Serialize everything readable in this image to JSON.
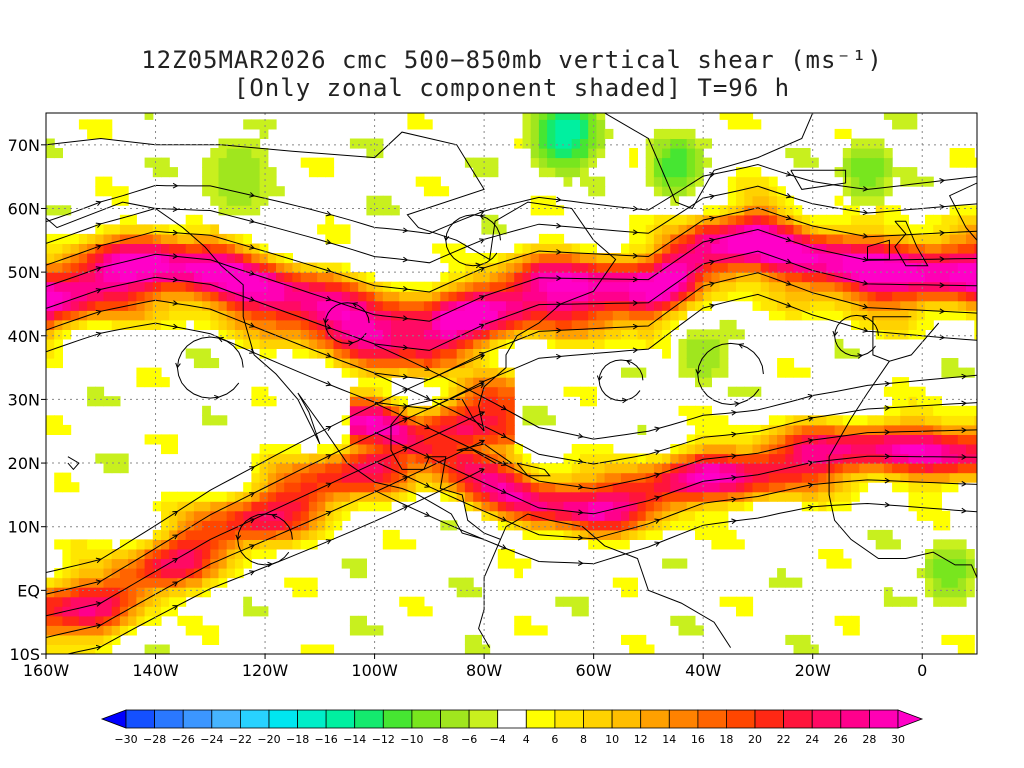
{
  "title": {
    "line1": "12Z05MAR2026 cmc 500−850mb vertical shear (ms⁻¹)",
    "line2": "[Only zonal component shaded] T=96 h"
  },
  "map": {
    "projection": "lat-lon",
    "lon_range": [
      -160,
      10
    ],
    "lat_range": [
      -10,
      75
    ],
    "lon_ticks": [
      {
        "value": -160,
        "label": "160W"
      },
      {
        "value": -140,
        "label": "140W"
      },
      {
        "value": -120,
        "label": "120W"
      },
      {
        "value": -100,
        "label": "100W"
      },
      {
        "value": -80,
        "label": "80W"
      },
      {
        "value": -60,
        "label": "60W"
      },
      {
        "value": -40,
        "label": "40W"
      },
      {
        "value": -20,
        "label": "20W"
      },
      {
        "value": 0,
        "label": "0"
      }
    ],
    "lat_ticks": [
      {
        "value": -10,
        "label": "10S"
      },
      {
        "value": 0,
        "label": "EQ"
      },
      {
        "value": 10,
        "label": "10N"
      },
      {
        "value": 20,
        "label": "20N"
      },
      {
        "value": 30,
        "label": "30N"
      },
      {
        "value": 40,
        "label": "40N"
      },
      {
        "value": 50,
        "label": "50N"
      },
      {
        "value": 60,
        "label": "60N"
      },
      {
        "value": 70,
        "label": "70N"
      }
    ],
    "gridlines": "dotted"
  },
  "colorbar": {
    "levels": [
      "-30",
      "-28",
      "-26",
      "-24",
      "-22",
      "-20",
      "-18",
      "-16",
      "-14",
      "-12",
      "-10",
      "-8",
      "-6",
      "-4",
      "4",
      "6",
      "8",
      "10",
      "12",
      "14",
      "16",
      "18",
      "20",
      "22",
      "24",
      "26",
      "28",
      "30"
    ],
    "colors": [
      "#0000ff",
      "#1450ff",
      "#2a78ff",
      "#3c96ff",
      "#46b4ff",
      "#28d2ff",
      "#00e6f0",
      "#00eec8",
      "#00f0a0",
      "#14ea6e",
      "#46e632",
      "#78e61e",
      "#a0e61e",
      "#c8f01e",
      "#ffffff",
      "#ffff00",
      "#ffe600",
      "#ffd200",
      "#ffbe00",
      "#ffa000",
      "#ff8200",
      "#ff6400",
      "#ff4600",
      "#ff2814",
      "#ff143c",
      "#ff0a64",
      "#ff008c",
      "#ff00b4",
      "#ff00c8"
    ]
  },
  "shading": {
    "comment_free": true,
    "bands": [
      {
        "lon": [
          -160,
          -150,
          -140,
          -130,
          -120,
          -110,
          -100,
          -90,
          -80,
          -70,
          -60,
          -50,
          -40,
          -30,
          -20,
          -10,
          0,
          10
        ],
        "center_lat": [
          46,
          49,
          51,
          50,
          47,
          44,
          41,
          40,
          44,
          47,
          47,
          47,
          53,
          55,
          52,
          50,
          50,
          50
        ],
        "half_width": 6,
        "peak": 30
      },
      {
        "lon": [
          -100,
          -90,
          -80,
          -70,
          -60,
          -50,
          -40,
          -30,
          -20,
          -10,
          0,
          10
        ],
        "center_lat": [
          26,
          22,
          18,
          14,
          13,
          15,
          18,
          19,
          21,
          22,
          22,
          22
        ],
        "half_width": 5,
        "peak": 26
      },
      {
        "lon": [
          -160,
          -150,
          -140,
          -130,
          -120,
          -110,
          -100,
          -90,
          -80
        ],
        "center_lat": [
          -4,
          -2,
          3,
          8,
          12,
          16,
          20,
          24,
          28
        ],
        "half_width": 6,
        "peak": 22
      }
    ],
    "negative_patches": [
      {
        "lon": -65,
        "lat": 72,
        "r": 6,
        "value": -16
      },
      {
        "lon": -45,
        "lat": 67,
        "r": 5,
        "value": -12
      },
      {
        "lon": -10,
        "lat": 66,
        "r": 5,
        "value": -10
      },
      {
        "lon": -125,
        "lat": 65,
        "r": 7,
        "value": -8
      },
      {
        "lon": -40,
        "lat": 37,
        "r": 5,
        "value": -8
      },
      {
        "lon": 5,
        "lat": 3,
        "r": 5,
        "value": -10
      }
    ]
  }
}
